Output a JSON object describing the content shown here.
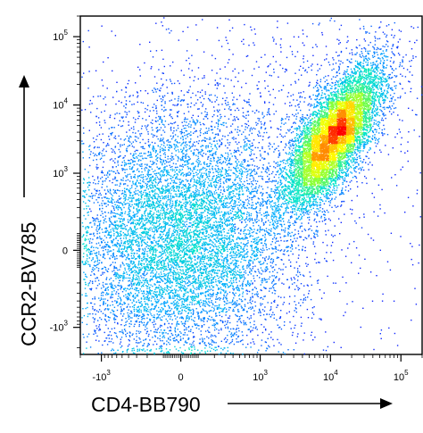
{
  "chart_data": {
    "type": "scatter",
    "subtype": "flow-cytometry density dot plot",
    "xlabel": "CD4-BB790",
    "ylabel": "CCR2-BV785",
    "x_scale": "biexponential",
    "y_scale": "biexponential",
    "x_ticks": [
      {
        "value": -1000,
        "label": "-10",
        "exp": "3"
      },
      {
        "value": 0,
        "label": "0",
        "exp": ""
      },
      {
        "value": 1000,
        "label": "10",
        "exp": "3"
      },
      {
        "value": 10000,
        "label": "10",
        "exp": "4"
      },
      {
        "value": 100000,
        "label": "10",
        "exp": "5"
      }
    ],
    "y_ticks": [
      {
        "value": -1000,
        "label": "-10",
        "exp": "3"
      },
      {
        "value": 0,
        "label": "0",
        "exp": ""
      },
      {
        "value": 1000,
        "label": "10",
        "exp": "3"
      },
      {
        "value": 10000,
        "label": "10",
        "exp": "4"
      },
      {
        "value": 100000,
        "label": "10",
        "exp": "5"
      }
    ],
    "xlim": [
      -2000,
      200000
    ],
    "ylim": [
      -2500,
      200000
    ],
    "populations": [
      {
        "name": "",
        "center_x": 0,
        "center_y": 50,
        "peak_density": "medium",
        "shape": "broad cloud"
      },
      {
        "name": "",
        "center_x": 11000,
        "center_y": 3500,
        "peak_density": "high",
        "shape": "diagonal ellipse"
      }
    ],
    "color_scale": [
      "#1414ff",
      "#00aaff",
      "#00e6c8",
      "#7dff3c",
      "#ffff00",
      "#ff8c00",
      "#ff0000"
    ],
    "grid": false,
    "legend": "none"
  }
}
